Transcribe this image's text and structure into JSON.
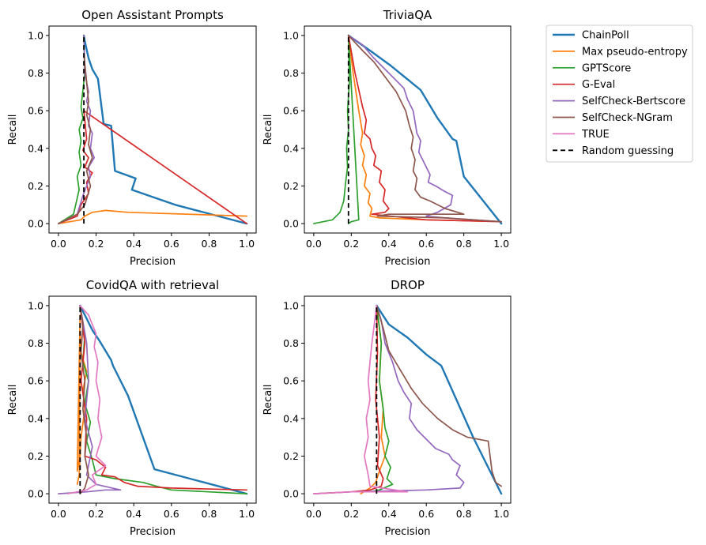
{
  "series_style": [
    {
      "name": "ChainPoll",
      "color": "#1f77b4",
      "width": 2.4,
      "dash": ""
    },
    {
      "name": "Max pseudo-entropy",
      "color": "#ff7f0e",
      "width": 1.7,
      "dash": ""
    },
    {
      "name": "GPTScore",
      "color": "#2ca02c",
      "width": 1.7,
      "dash": ""
    },
    {
      "name": "G-Eval",
      "color": "#d62728",
      "width": 1.7,
      "dash": ""
    },
    {
      "name": "SelfCheck-Bertscore",
      "color": "#9467bd",
      "width": 1.7,
      "dash": ""
    },
    {
      "name": "SelfCheck-NGram",
      "color": "#8c564b",
      "width": 1.7,
      "dash": ""
    },
    {
      "name": "TRUE",
      "color": "#e377c2",
      "width": 1.7,
      "dash": ""
    },
    {
      "name": "Random guessing",
      "color": "#000000",
      "width": 1.8,
      "dash": "6,4"
    }
  ],
  "legend": {
    "placement": "outside-right",
    "entries": [
      "ChainPoll",
      "Max pseudo-entropy",
      "GPTScore",
      "G-Eval",
      "SelfCheck-Bertscore",
      "SelfCheck-NGram",
      "TRUE",
      "Random guessing"
    ]
  },
  "chart_data": [
    {
      "type": "line",
      "title": "Open Assistant Prompts",
      "xlabel": "Precision",
      "ylabel": "Recall",
      "xlim": [
        -0.05,
        1.05
      ],
      "ylim": [
        -0.05,
        1.05
      ],
      "xticks": [
        "0.0",
        "0.2",
        "0.4",
        "0.6",
        "0.8",
        "1.0"
      ],
      "yticks": [
        "0.0",
        "0.2",
        "0.4",
        "0.6",
        "0.8",
        "1.0"
      ],
      "random_guess": 0.135,
      "series": [
        {
          "name": "ChainPoll",
          "x": [
            0.135,
            0.14,
            0.16,
            0.18,
            0.21,
            0.24,
            0.28,
            0.3,
            0.41,
            0.39,
            0.62,
            1.0
          ],
          "y": [
            1.0,
            0.97,
            0.88,
            0.82,
            0.77,
            0.53,
            0.52,
            0.28,
            0.24,
            0.18,
            0.1,
            0.0
          ]
        },
        {
          "name": "Max pseudo-entropy",
          "x": [
            0.0,
            0.12,
            0.14,
            0.18,
            0.25,
            0.37,
            1.0
          ],
          "y": [
            0.0,
            0.02,
            0.04,
            0.06,
            0.07,
            0.06,
            0.04
          ]
        },
        {
          "name": "GPTScore",
          "x": [
            0.0,
            0.08,
            0.11,
            0.1,
            0.12,
            0.11,
            0.12,
            0.11,
            0.13,
            0.12,
            0.14,
            0.135
          ],
          "y": [
            0.0,
            0.05,
            0.18,
            0.25,
            0.31,
            0.38,
            0.44,
            0.5,
            0.56,
            0.62,
            0.8,
            1.0
          ]
        },
        {
          "name": "G-Eval",
          "x": [
            0.0,
            0.1,
            0.12,
            0.16,
            0.15,
            0.18,
            0.14,
            0.16,
            0.13,
            0.15,
            0.135,
            1.0
          ],
          "y": [
            0.0,
            0.04,
            0.1,
            0.16,
            0.22,
            0.27,
            0.3,
            0.35,
            0.39,
            0.45,
            0.6,
            0.0
          ]
        },
        {
          "name": "SelfCheck-Bertscore",
          "x": [
            0.0,
            0.1,
            0.13,
            0.15,
            0.17,
            0.16,
            0.19,
            0.17,
            0.18,
            0.16,
            0.17,
            0.15,
            0.16,
            0.14,
            0.135
          ],
          "y": [
            0.0,
            0.05,
            0.15,
            0.2,
            0.25,
            0.3,
            0.35,
            0.4,
            0.48,
            0.52,
            0.6,
            0.65,
            0.7,
            0.8,
            1.0
          ]
        },
        {
          "name": "SelfCheck-NGram",
          "x": [
            0.0,
            0.1,
            0.14,
            0.17,
            0.15,
            0.18,
            0.16,
            0.17,
            0.15,
            0.16,
            0.135
          ],
          "y": [
            0.0,
            0.05,
            0.1,
            0.2,
            0.28,
            0.35,
            0.42,
            0.5,
            0.58,
            0.65,
            0.9
          ]
        },
        {
          "name": "TRUE",
          "x": [],
          "y": []
        }
      ]
    },
    {
      "type": "line",
      "title": "TriviaQA",
      "xlabel": "Precision",
      "ylabel": "Recall",
      "xlim": [
        -0.05,
        1.05
      ],
      "ylim": [
        -0.05,
        1.05
      ],
      "xticks": [
        "0.0",
        "0.2",
        "0.4",
        "0.6",
        "0.8",
        "1.0"
      ],
      "yticks": [
        "0.0",
        "0.2",
        "0.4",
        "0.6",
        "0.8",
        "1.0"
      ],
      "random_guess": 0.185,
      "series": [
        {
          "name": "ChainPoll",
          "x": [
            0.185,
            0.3,
            0.41,
            0.57,
            0.66,
            0.74,
            0.76,
            0.8,
            1.0
          ],
          "y": [
            1.0,
            0.92,
            0.84,
            0.71,
            0.56,
            0.45,
            0.44,
            0.25,
            0.0
          ]
        },
        {
          "name": "Max pseudo-entropy",
          "x": [
            0.185,
            0.21,
            0.24,
            0.26,
            0.25,
            0.27,
            0.26,
            0.28,
            0.27,
            0.3,
            0.29,
            0.31,
            0.3,
            0.35,
            0.6,
            1.0
          ],
          "y": [
            1.0,
            0.8,
            0.6,
            0.48,
            0.42,
            0.36,
            0.31,
            0.26,
            0.2,
            0.16,
            0.11,
            0.08,
            0.04,
            0.03,
            0.02,
            0.01
          ]
        },
        {
          "name": "GPTScore",
          "x": [
            0.0,
            0.1,
            0.14,
            0.16,
            0.17,
            0.18,
            0.175,
            0.185,
            0.18,
            0.19,
            0.185,
            0.24,
            0.2,
            0.185
          ],
          "y": [
            0.0,
            0.02,
            0.06,
            0.12,
            0.22,
            0.3,
            0.4,
            0.5,
            0.6,
            0.75,
            1.0,
            0.02,
            0.01,
            0.0
          ]
        },
        {
          "name": "G-Eval",
          "x": [
            0.185,
            0.22,
            0.26,
            0.28,
            0.27,
            0.3,
            0.31,
            0.33,
            0.32,
            0.36,
            0.35,
            0.38,
            0.37,
            0.4,
            0.38,
            0.31,
            0.6,
            1.0
          ],
          "y": [
            1.0,
            0.8,
            0.62,
            0.55,
            0.48,
            0.45,
            0.4,
            0.36,
            0.31,
            0.28,
            0.22,
            0.18,
            0.12,
            0.08,
            0.06,
            0.05,
            0.02,
            0.01
          ]
        },
        {
          "name": "SelfCheck-Bertscore",
          "x": [
            0.185,
            0.26,
            0.32,
            0.4,
            0.48,
            0.5,
            0.53,
            0.54,
            0.55,
            0.57,
            0.56,
            0.58,
            0.6,
            0.62,
            0.61,
            0.65,
            0.7,
            0.74,
            0.73,
            0.66,
            0.6,
            0.7,
            1.0
          ],
          "y": [
            1.0,
            0.95,
            0.88,
            0.8,
            0.72,
            0.66,
            0.6,
            0.54,
            0.48,
            0.44,
            0.38,
            0.34,
            0.3,
            0.26,
            0.22,
            0.2,
            0.17,
            0.15,
            0.1,
            0.06,
            0.04,
            0.03,
            0.01
          ]
        },
        {
          "name": "SelfCheck-NGram",
          "x": [
            0.185,
            0.26,
            0.32,
            0.38,
            0.44,
            0.49,
            0.51,
            0.53,
            0.52,
            0.54,
            0.53,
            0.55,
            0.54,
            0.57,
            0.62,
            0.66,
            0.7,
            0.8,
            0.5,
            0.4,
            0.34,
            0.7,
            1.0
          ],
          "y": [
            1.0,
            0.92,
            0.86,
            0.78,
            0.7,
            0.6,
            0.52,
            0.46,
            0.4,
            0.34,
            0.28,
            0.24,
            0.18,
            0.14,
            0.12,
            0.1,
            0.08,
            0.05,
            0.05,
            0.05,
            0.04,
            0.03,
            0.01
          ]
        },
        {
          "name": "TRUE",
          "x": [],
          "y": []
        }
      ]
    },
    {
      "type": "line",
      "title": "CovidQA with retrieval",
      "xlabel": "Precision",
      "ylabel": "Recall",
      "xlim": [
        -0.05,
        1.05
      ],
      "ylim": [
        -0.05,
        1.05
      ],
      "xticks": [
        "0.0",
        "0.2",
        "0.4",
        "0.6",
        "0.8",
        "1.0"
      ],
      "yticks": [
        "0.0",
        "0.2",
        "0.4",
        "0.6",
        "0.8",
        "1.0"
      ],
      "random_guess": 0.115,
      "series": [
        {
          "name": "ChainPoll",
          "x": [
            0.115,
            0.14,
            0.18,
            0.22,
            0.28,
            0.29,
            0.37,
            0.51,
            1.0
          ],
          "y": [
            1.0,
            0.95,
            0.87,
            0.81,
            0.71,
            0.68,
            0.52,
            0.13,
            0.0
          ]
        },
        {
          "name": "Max pseudo-entropy",
          "x": [
            0.1,
            0.11,
            0.12,
            0.14,
            0.13,
            0.15,
            0.12,
            0.115,
            0.11,
            0.1,
            0.115
          ],
          "y": [
            0.05,
            0.1,
            0.3,
            0.45,
            0.55,
            0.65,
            0.75,
            0.85,
            0.18,
            0.12,
            0.95
          ]
        },
        {
          "name": "GPTScore",
          "x": [
            0.115,
            0.14,
            0.13,
            0.16,
            0.14,
            0.17,
            0.15,
            0.18,
            0.2,
            0.3,
            0.45,
            0.52,
            0.6,
            1.0
          ],
          "y": [
            1.0,
            0.85,
            0.7,
            0.6,
            0.48,
            0.38,
            0.28,
            0.18,
            0.1,
            0.08,
            0.06,
            0.04,
            0.02,
            0.0
          ]
        },
        {
          "name": "G-Eval",
          "x": [
            0.115,
            0.14,
            0.12,
            0.15,
            0.14,
            0.2,
            0.25,
            0.23,
            0.3,
            0.35,
            0.42,
            0.6,
            1.0
          ],
          "y": [
            1.0,
            0.8,
            0.6,
            0.4,
            0.2,
            0.18,
            0.14,
            0.1,
            0.09,
            0.06,
            0.04,
            0.03,
            0.02
          ]
        },
        {
          "name": "SelfCheck-Bertscore",
          "x": [
            0.0,
            0.15,
            0.25,
            0.33,
            0.2,
            0.15,
            0.18,
            0.14,
            0.16,
            0.15,
            0.115
          ],
          "y": [
            0.0,
            0.01,
            0.02,
            0.02,
            0.05,
            0.1,
            0.25,
            0.4,
            0.6,
            0.8,
            1.0
          ]
        },
        {
          "name": "SelfCheck-NGram",
          "x": [
            0.115,
            0.13,
            0.12,
            0.14,
            0.13,
            0.15,
            0.14,
            0.16,
            0.14,
            0.115
          ],
          "y": [
            1.0,
            0.9,
            0.75,
            0.6,
            0.45,
            0.3,
            0.2,
            0.1,
            0.03,
            0.0
          ]
        },
        {
          "name": "TRUE",
          "x": [
            0.115,
            0.16,
            0.2,
            0.19,
            0.21,
            0.2,
            0.22,
            0.21,
            0.23,
            0.2,
            0.25,
            0.18,
            0.2,
            0.15,
            0.1,
            0.05
          ],
          "y": [
            1.0,
            0.95,
            0.85,
            0.78,
            0.7,
            0.6,
            0.5,
            0.4,
            0.3,
            0.2,
            0.15,
            0.1,
            0.05,
            0.02,
            0.01,
            0.0
          ]
        }
      ]
    },
    {
      "type": "line",
      "title": "DROP",
      "xlabel": "Precision",
      "ylabel": "Recall",
      "xlim": [
        -0.05,
        1.05
      ],
      "ylim": [
        -0.05,
        1.05
      ],
      "xticks": [
        "0.0",
        "0.2",
        "0.4",
        "0.6",
        "0.8",
        "1.0"
      ],
      "yticks": [
        "0.0",
        "0.2",
        "0.4",
        "0.6",
        "0.8",
        "1.0"
      ],
      "random_guess": 0.335,
      "series": [
        {
          "name": "ChainPoll",
          "x": [
            0.335,
            0.4,
            0.5,
            0.6,
            0.68,
            0.85,
            1.0
          ],
          "y": [
            1.0,
            0.9,
            0.83,
            0.74,
            0.68,
            0.3,
            0.0
          ]
        },
        {
          "name": "Max pseudo-entropy",
          "x": [
            0.335,
            0.36,
            0.35,
            0.37,
            0.36,
            0.38,
            0.35,
            0.33,
            0.3,
            0.25
          ],
          "y": [
            1.0,
            0.8,
            0.6,
            0.45,
            0.3,
            0.2,
            0.12,
            0.06,
            0.03,
            0.0
          ]
        },
        {
          "name": "GPTScore",
          "x": [
            0.335,
            0.36,
            0.35,
            0.37,
            0.38,
            0.4,
            0.38,
            0.41,
            0.39,
            0.42,
            0.35,
            0.3
          ],
          "y": [
            1.0,
            0.8,
            0.6,
            0.45,
            0.35,
            0.28,
            0.2,
            0.14,
            0.08,
            0.05,
            0.02,
            0.01
          ]
        },
        {
          "name": "G-Eval",
          "x": [
            0.335,
            0.34,
            0.33,
            0.35,
            0.34,
            0.37,
            0.36,
            0.3,
            0.2,
            0.0
          ],
          "y": [
            1.0,
            0.75,
            0.5,
            0.3,
            0.15,
            0.08,
            0.04,
            0.02,
            0.01,
            0.0
          ]
        },
        {
          "name": "SelfCheck-Bertscore",
          "x": [
            0.335,
            0.36,
            0.38,
            0.42,
            0.45,
            0.48,
            0.52,
            0.51,
            0.55,
            0.6,
            0.65,
            0.72,
            0.74,
            0.78,
            0.76,
            0.8,
            0.78,
            0.6,
            0.2,
            0.0
          ],
          "y": [
            1.0,
            0.92,
            0.8,
            0.7,
            0.6,
            0.54,
            0.48,
            0.4,
            0.34,
            0.29,
            0.24,
            0.21,
            0.18,
            0.15,
            0.1,
            0.06,
            0.03,
            0.02,
            0.01,
            0.0
          ]
        },
        {
          "name": "SelfCheck-NGram",
          "x": [
            0.335,
            0.37,
            0.4,
            0.46,
            0.52,
            0.58,
            0.66,
            0.74,
            0.82,
            0.93,
            0.95,
            0.97,
            1.0
          ],
          "y": [
            1.0,
            0.88,
            0.76,
            0.66,
            0.56,
            0.48,
            0.4,
            0.34,
            0.3,
            0.28,
            0.12,
            0.06,
            0.04
          ]
        },
        {
          "name": "TRUE",
          "x": [
            0.335,
            0.31,
            0.3,
            0.29,
            0.3,
            0.28,
            0.29,
            0.27,
            0.29,
            0.3,
            0.5,
            0.4,
            0.2,
            0.0
          ],
          "y": [
            1.0,
            0.8,
            0.7,
            0.6,
            0.5,
            0.4,
            0.3,
            0.2,
            0.1,
            0.04,
            0.01,
            0.01,
            0.01,
            0.0
          ]
        }
      ]
    }
  ]
}
